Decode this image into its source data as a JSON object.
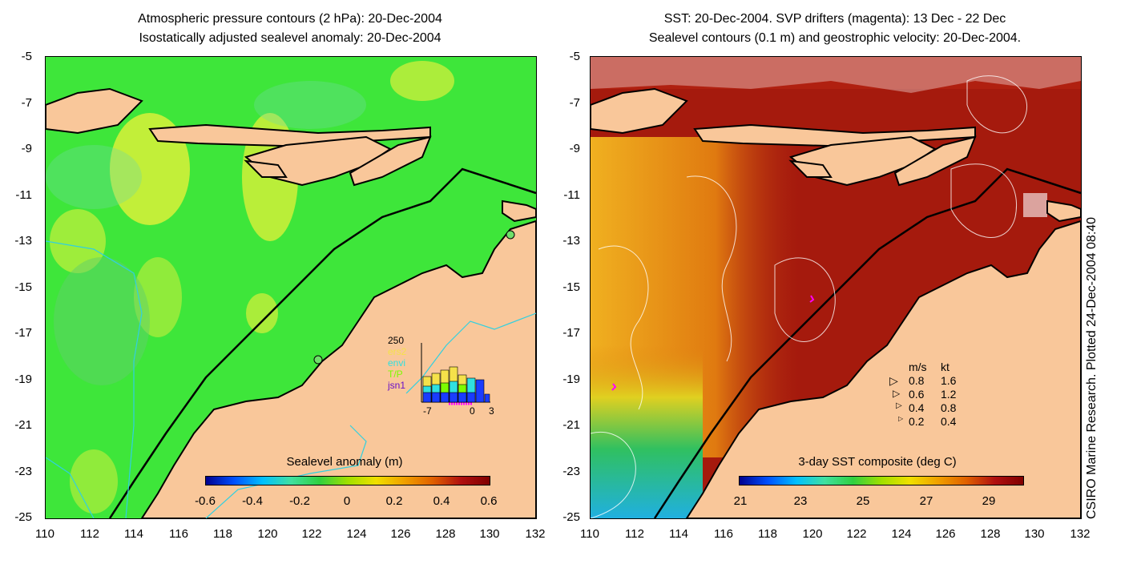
{
  "left_panel": {
    "title_line1": "Atmospheric pressure contours (2 hPa): 20-Dec-2004",
    "title_line2": "Isostatically adjusted sealevel anomaly: 20-Dec-2004",
    "colorbar": {
      "label": "Sealevel anomaly (m)",
      "ticks": [
        "-0.6",
        "-0.4",
        "-0.2",
        "0",
        "0.2",
        "0.4",
        "0.6"
      ]
    },
    "inset": {
      "ymax_label": "250",
      "legend": [
        "ers2",
        "envi",
        "T/P",
        "jsn1"
      ],
      "legend_colors": [
        "#f5e14a",
        "#2fe0e0",
        "#7cfc00",
        "#6a11c8"
      ],
      "x_ticks": [
        "-7",
        "0",
        "3"
      ]
    }
  },
  "right_panel": {
    "title_line1": "SST: 20-Dec-2004. SVP drifters (magenta): 13 Dec - 22 Dec",
    "title_line2": "Sealevel contours (0.1 m) and geostrophic velocity: 20-Dec-2004.",
    "colorbar": {
      "label": "3-day SST composite (deg C)",
      "ticks": [
        "21",
        "23",
        "25",
        "27",
        "29"
      ]
    },
    "velocity_legend": {
      "header_ms": "m/s",
      "header_kt": "kt",
      "rows": [
        {
          "ms": "0.8",
          "kt": "1.6"
        },
        {
          "ms": "0.6",
          "kt": "1.2"
        },
        {
          "ms": "0.4",
          "kt": "0.8"
        },
        {
          "ms": "0.2",
          "kt": "0.4"
        }
      ]
    }
  },
  "axes": {
    "y_ticks": [
      "-5",
      "-7",
      "-9",
      "-11",
      "-13",
      "-15",
      "-17",
      "-19",
      "-21",
      "-23",
      "-25"
    ],
    "x_ticks": [
      "110",
      "112",
      "114",
      "116",
      "118",
      "120",
      "122",
      "124",
      "126",
      "128",
      "130",
      "132"
    ]
  },
  "credit": "CSIRO Marine Research. Plotted 24-Dec-2004 08:40",
  "colors": {
    "land": "#f9c79a",
    "sla_background": "#3ee63a",
    "sst_background": "#a51a0d"
  }
}
